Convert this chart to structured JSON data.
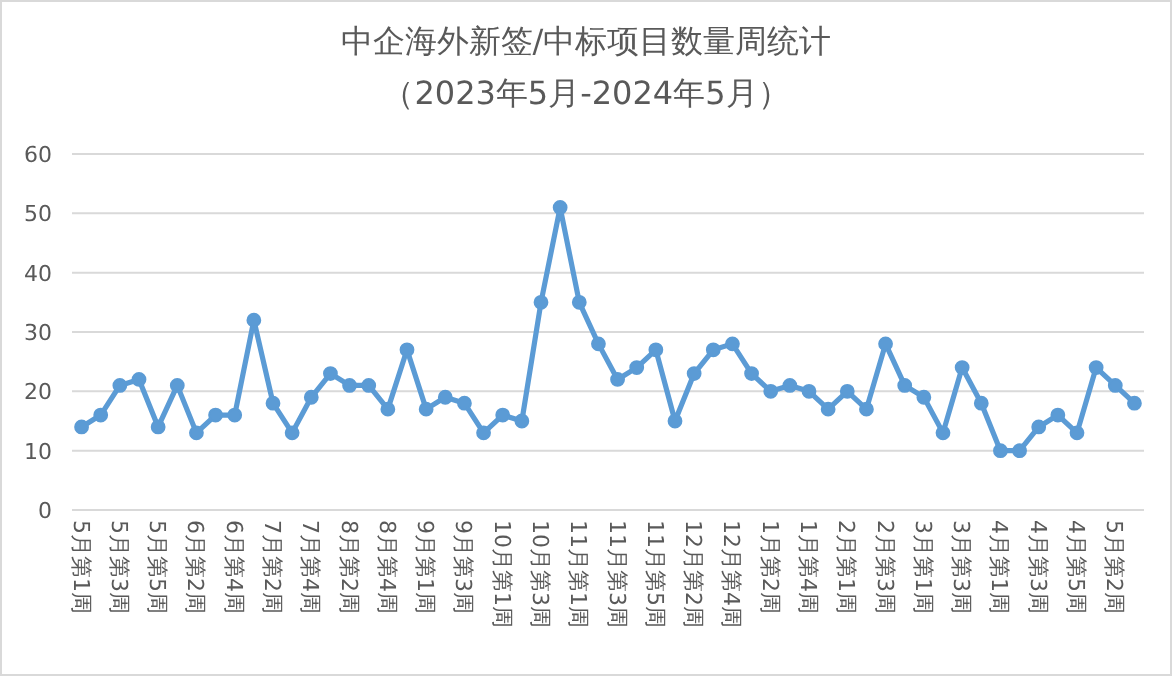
{
  "chart_data": {
    "type": "line",
    "title": "中企海外新签/中标项目数量周统计",
    "subtitle": "（2023年5月-2024年5月）",
    "categories": [
      "5月第1周",
      null,
      "5月第3周",
      null,
      "5月第5周",
      null,
      "6月第2周",
      null,
      "6月第4周",
      null,
      "7月第2周",
      null,
      "7月第4周",
      null,
      "8月第2周",
      null,
      "8月第4周",
      null,
      "9月第1周",
      null,
      "9月第3周",
      null,
      "10月第1周",
      null,
      "10月第3周",
      null,
      "11月第1周",
      null,
      "11月第3周",
      null,
      "11月第5周",
      null,
      "12月第2周",
      null,
      "12月第4周",
      null,
      "1月第2周",
      null,
      "1月第4周",
      null,
      "2月第1周",
      null,
      "2月第3周",
      null,
      "3月第1周",
      null,
      "3月第3周",
      null,
      "4月第1周",
      null,
      "4月第3周",
      null,
      "4月第5周",
      null,
      "5月第2周",
      null
    ],
    "values": [
      14,
      16,
      21,
      22,
      14,
      21,
      13,
      16,
      16,
      32,
      18,
      13,
      19,
      23,
      21,
      21,
      17,
      27,
      17,
      19,
      18,
      13,
      16,
      15,
      35,
      51,
      35,
      28,
      22,
      24,
      27,
      15,
      23,
      27,
      28,
      23,
      20,
      21,
      20,
      17,
      20,
      17,
      28,
      21,
      19,
      13,
      24,
      18,
      10,
      10,
      14,
      16,
      13,
      24,
      21,
      18
    ],
    "color": "#5b9bd5",
    "marker": "circle",
    "ylim": [
      0,
      60
    ],
    "yticks": [
      0,
      10,
      20,
      30,
      40,
      50,
      60
    ],
    "grid": "y"
  }
}
